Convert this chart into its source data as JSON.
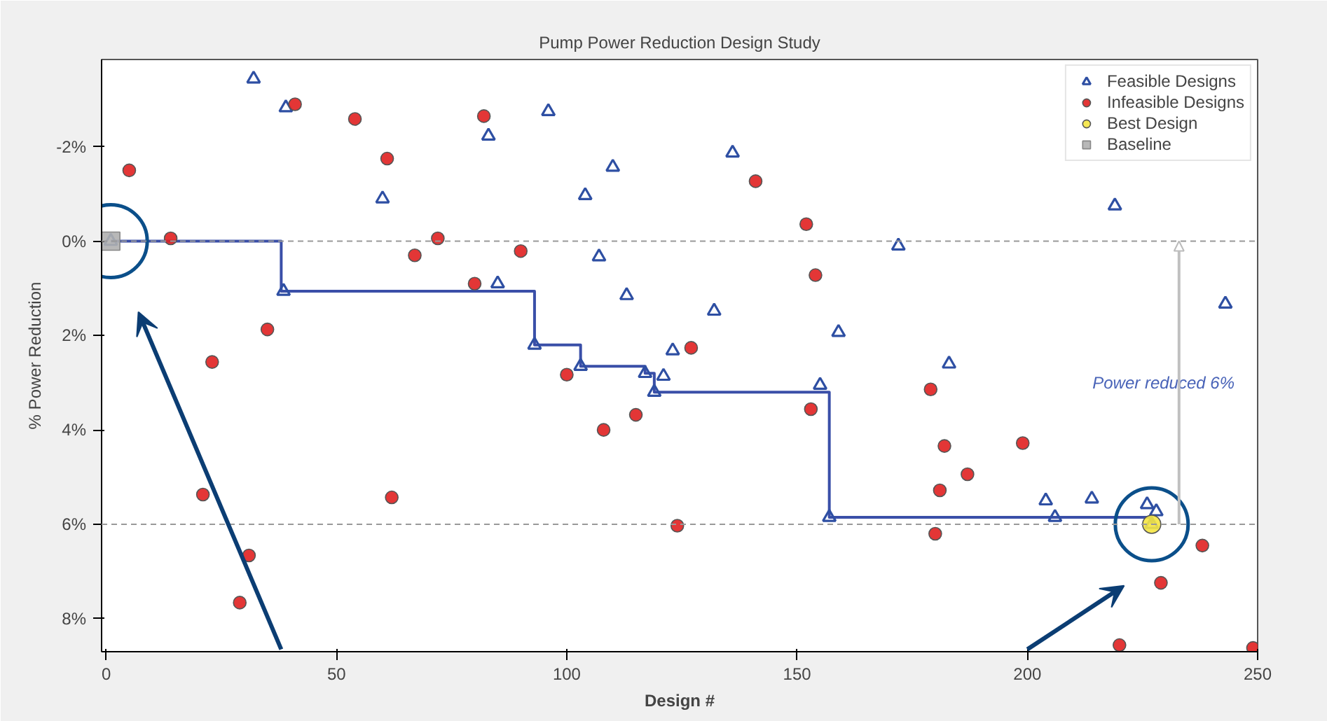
{
  "chart_data": {
    "type": "scatter",
    "title": "Pump Power Reduction Design Study",
    "xlabel": "Design #",
    "ylabel": "% Power Reduction",
    "xlim": [
      -1,
      250
    ],
    "ylim": [
      8.7,
      -3.85
    ],
    "xticks": [
      0,
      50,
      100,
      150,
      200,
      250
    ],
    "yticks": [
      {
        "value": -2,
        "label": "-2%"
      },
      {
        "value": 0,
        "label": "0%"
      },
      {
        "value": 2,
        "label": "2%"
      },
      {
        "value": 4,
        "label": "4%"
      },
      {
        "value": 6,
        "label": "6%"
      },
      {
        "value": 8,
        "label": "8%"
      }
    ],
    "grid": false,
    "legend": "top right",
    "series": [
      {
        "type": "step",
        "color": "#3a4fa8",
        "marker": "none",
        "x": [
          1,
          38,
          93,
          103,
          117,
          119,
          157,
          227
        ],
        "values": [
          0,
          1.06,
          2.2,
          2.65,
          2.8,
          3.2,
          5.85,
          6.0
        ]
      },
      {
        "name": "Feasible Designs",
        "color": "#2e4fa3",
        "marker": "triangle",
        "x": [
          1,
          32,
          39,
          38.5,
          60,
          83,
          96,
          110,
          104,
          107,
          113,
          132,
          136,
          159,
          172,
          93,
          103,
          123,
          117,
          121,
          119,
          155,
          85,
          157,
          183,
          204,
          206,
          214,
          226,
          228,
          227,
          219,
          243
        ],
        "values": [
          0,
          -3.44,
          -2.83,
          1.06,
          -0.9,
          -2.23,
          -2.75,
          -1.57,
          -0.97,
          0.33,
          1.15,
          1.48,
          -1.87,
          1.93,
          0.1,
          2.2,
          2.65,
          2.32,
          2.8,
          2.86,
          3.2,
          3.05,
          0.9,
          5.85,
          2.6,
          5.5,
          5.85,
          5.46,
          5.58,
          5.73,
          6.0,
          -0.75,
          1.33
        ]
      },
      {
        "name": "Infeasible Designs",
        "color": "#e02020",
        "marker": "circle",
        "x": [
          5,
          41,
          54,
          61,
          82,
          14,
          67,
          72,
          80,
          35,
          23,
          90,
          141,
          152,
          154,
          127,
          100,
          108,
          115,
          153,
          124,
          21,
          62,
          31,
          29,
          179,
          182,
          187,
          199,
          181,
          180,
          238,
          229,
          220,
          249
        ],
        "values": [
          -1.5,
          -2.9,
          -2.59,
          -1.75,
          -2.65,
          -0.06,
          0.3,
          -0.06,
          0.9,
          1.87,
          2.56,
          0.21,
          -1.27,
          -0.36,
          0.72,
          2.26,
          2.83,
          4.0,
          3.68,
          3.56,
          6.03,
          5.37,
          5.43,
          6.66,
          7.66,
          3.14,
          4.34,
          4.94,
          4.28,
          5.28,
          6.2,
          6.45,
          7.24,
          8.56,
          8.62
        ]
      },
      {
        "name": "Best Design",
        "color": "#f5e642",
        "marker": "circle",
        "x": [
          227
        ],
        "values": [
          6.0
        ]
      },
      {
        "name": "Baseline",
        "color": "#b0b0b0",
        "marker": "square",
        "x": [
          1
        ],
        "values": [
          0
        ]
      }
    ],
    "ref_lines": [
      {
        "axis": "y",
        "value": 0,
        "color": "#999999",
        "line_style": "dashed"
      },
      {
        "axis": "y",
        "value": 6,
        "color": "#999999",
        "line_style": "dashed"
      }
    ],
    "annotations": [
      "Power reduced 6%"
    ]
  }
}
